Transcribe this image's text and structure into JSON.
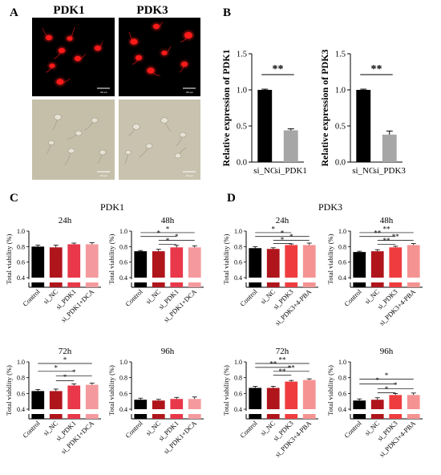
{
  "panel_labels": {
    "A": "A",
    "B": "B",
    "C": "C",
    "D": "D"
  },
  "panelA": {
    "col_titles": [
      "PDK1",
      "PDK3"
    ],
    "scale_bar_text": "100 μm",
    "colors": {
      "fluor_bg": "#000000",
      "fluor_cell": "#ff1a1a",
      "bright_bg": "#c8c2ae",
      "bright_cell": "#e6e2d4"
    }
  },
  "panelB": {
    "charts": [
      {
        "type": "bar",
        "ylabel": "Relative expression of PDK1",
        "categories": [
          "si_NC",
          "si_PDK1"
        ],
        "values": [
          1.0,
          0.44
        ],
        "errors": [
          0.01,
          0.02
        ],
        "colors": [
          "#000000",
          "#a6a6a6"
        ],
        "ylim": [
          0,
          1.5
        ],
        "yticks": [
          "0.0",
          "0.5",
          "1.0",
          "1.5"
        ],
        "sig": "**"
      },
      {
        "type": "bar",
        "ylabel": "Relative expression of PDK3",
        "categories": [
          "si_NC",
          "si_PDK3"
        ],
        "values": [
          1.0,
          0.38
        ],
        "errors": [
          0.01,
          0.05
        ],
        "colors": [
          "#000000",
          "#a6a6a6"
        ],
        "ylim": [
          0,
          1.5
        ],
        "yticks": [
          "0.0",
          "0.5",
          "1.0",
          "1.5"
        ],
        "sig": "**"
      }
    ]
  },
  "panelC": {
    "title": "PDK1",
    "colors": [
      "#000000",
      "#b0151c",
      "#e8384a",
      "#f49a9e"
    ],
    "categories": [
      "Control",
      "si_NC",
      "si_PDK1",
      "si_PDK1+DCA"
    ]
  },
  "panelD": {
    "title": "PDK3",
    "colors": [
      "#000000",
      "#b0151c",
      "#ef3d3f",
      "#f59393"
    ],
    "categories": [
      "Control",
      "si_NC",
      "si_PDK3",
      "si_PDK3+4-PBA"
    ]
  },
  "chart_data": [
    {
      "type": "bar",
      "panel": "C",
      "title": "24h",
      "ylabel": "Total viability (%)",
      "categories": [
        "Control",
        "si_NC",
        "si_PDK1",
        "si_PDK1+DCA"
      ],
      "values": [
        0.8,
        0.79,
        0.83,
        0.83
      ],
      "errors": [
        0.02,
        0.03,
        0.015,
        0.02
      ],
      "ylim": [
        0,
        1.0
      ],
      "yticks": [
        "0.4",
        "0.6",
        "0.8",
        "1.0"
      ],
      "brackets": []
    },
    {
      "type": "bar",
      "panel": "C",
      "title": "48h",
      "ylabel": "Total viability (%)",
      "categories": [
        "Control",
        "si_NC",
        "si_PDK1",
        "si_PDK1+DCA"
      ],
      "values": [
        0.74,
        0.74,
        0.79,
        0.79
      ],
      "errors": [
        0.01,
        0.025,
        0.025,
        0.02
      ],
      "ylim": [
        0,
        1.0
      ],
      "yticks": [
        "0.4",
        "0.6",
        "0.8",
        "1.0"
      ],
      "brackets": [
        {
          "from": 0,
          "to": 3,
          "level": 0.98,
          "label": "*"
        },
        {
          "from": 0,
          "to": 2,
          "level": 0.93,
          "label": "*"
        },
        {
          "from": 1,
          "to": 3,
          "level": 0.88,
          "label": "*"
        },
        {
          "from": 1,
          "to": 2,
          "level": 0.83,
          "label": "*"
        }
      ]
    },
    {
      "type": "bar",
      "panel": "C",
      "title": "72h",
      "ylabel": "Total viability (%)",
      "categories": [
        "Control",
        "si_NC",
        "si_PDK1",
        "si_PDK1+DCA"
      ],
      "values": [
        0.63,
        0.63,
        0.7,
        0.71
      ],
      "errors": [
        0.02,
        0.025,
        0.02,
        0.02
      ],
      "ylim": [
        0,
        1.0
      ],
      "yticks": [
        "0.4",
        "0.6",
        "0.8",
        "1.0"
      ],
      "brackets": [
        {
          "from": 0,
          "to": 3,
          "level": 0.98,
          "label": "*"
        },
        {
          "from": 0,
          "to": 2,
          "level": 0.88,
          "label": "*"
        },
        {
          "from": 1,
          "to": 3,
          "level": 0.82,
          "label": "*"
        },
        {
          "from": 1,
          "to": 2,
          "level": 0.76,
          "label": "*"
        }
      ]
    },
    {
      "type": "bar",
      "panel": "C",
      "title": "96h",
      "ylabel": "Total viability (%)",
      "categories": [
        "Control",
        "si_NC",
        "si_PDK1",
        "si_PDK1+DCA"
      ],
      "values": [
        0.52,
        0.51,
        0.53,
        0.53
      ],
      "errors": [
        0.02,
        0.015,
        0.02,
        0.025
      ],
      "ylim": [
        0,
        1.0
      ],
      "yticks": [
        "0.4",
        "0.6",
        "0.8",
        "1.0"
      ],
      "brackets": []
    },
    {
      "type": "bar",
      "panel": "D",
      "title": "24h",
      "ylabel": "Total viability (%)",
      "categories": [
        "Control",
        "si_NC",
        "si_PDK3",
        "si_PDK3+4-PBA"
      ],
      "values": [
        0.78,
        0.77,
        0.82,
        0.82
      ],
      "errors": [
        0.02,
        0.015,
        0.015,
        0.025
      ],
      "ylim": [
        0,
        1.0
      ],
      "yticks": [
        "0.4",
        "0.6",
        "0.8",
        "1.0"
      ],
      "brackets": [
        {
          "from": 0,
          "to": 2,
          "level": 0.98,
          "label": "*"
        },
        {
          "from": 0,
          "to": 3,
          "level": 0.93,
          "label": "*"
        },
        {
          "from": 1,
          "to": 3,
          "level": 0.88,
          "label": "*"
        },
        {
          "from": 1,
          "to": 2,
          "level": 0.84,
          "label": "*"
        }
      ]
    },
    {
      "type": "bar",
      "panel": "D",
      "title": "48h",
      "ylabel": "Total viability (%)",
      "categories": [
        "Control",
        "si_NC",
        "si_PDK3",
        "si_PDK3+4-PBA"
      ],
      "values": [
        0.73,
        0.74,
        0.79,
        0.82
      ],
      "errors": [
        0.01,
        0.02,
        0.015,
        0.02
      ],
      "ylim": [
        0,
        1.0
      ],
      "yticks": [
        "0.4",
        "0.6",
        "0.8",
        "1.0"
      ],
      "brackets": [
        {
          "from": 0,
          "to": 3,
          "level": 0.98,
          "label": "**"
        },
        {
          "from": 0,
          "to": 2,
          "level": 0.93,
          "label": "**"
        },
        {
          "from": 1,
          "to": 3,
          "level": 0.88,
          "label": "**"
        },
        {
          "from": 1,
          "to": 2,
          "level": 0.83,
          "label": "**"
        }
      ]
    },
    {
      "type": "bar",
      "panel": "D",
      "title": "72h",
      "ylabel": "Total viability (%)",
      "categories": [
        "Control",
        "si_NC",
        "si_PDK3",
        "si_PDK3+4-PBA"
      ],
      "values": [
        0.67,
        0.67,
        0.75,
        0.77
      ],
      "errors": [
        0.02,
        0.02,
        0.015,
        0.015
      ],
      "ylim": [
        0,
        1.0
      ],
      "yticks": [
        "0.4",
        "0.6",
        "0.8",
        "1.0"
      ],
      "brackets": [
        {
          "from": 0,
          "to": 3,
          "level": 0.98,
          "label": "**"
        },
        {
          "from": 0,
          "to": 2,
          "level": 0.93,
          "label": "**"
        },
        {
          "from": 1,
          "to": 3,
          "level": 0.88,
          "label": "**"
        },
        {
          "from": 1,
          "to": 2,
          "level": 0.83,
          "label": "**"
        }
      ]
    },
    {
      "type": "bar",
      "panel": "D",
      "title": "96h",
      "ylabel": "Total viability (%)",
      "categories": [
        "Control",
        "si_NC",
        "si_PDK3",
        "si_PDK3+4-PBA"
      ],
      "values": [
        0.51,
        0.52,
        0.58,
        0.58
      ],
      "errors": [
        0.02,
        0.025,
        0.02,
        0.025
      ],
      "ylim": [
        0,
        1.0
      ],
      "yticks": [
        "0.4",
        "0.6",
        "0.8",
        "1.0"
      ],
      "brackets": [
        {
          "from": 0,
          "to": 3,
          "level": 0.78,
          "label": "*"
        },
        {
          "from": 0,
          "to": 2,
          "level": 0.72,
          "label": "*"
        },
        {
          "from": 1,
          "to": 3,
          "level": 0.66,
          "label": "*"
        },
        {
          "from": 1,
          "to": 2,
          "level": 0.61,
          "label": "*"
        }
      ]
    }
  ]
}
